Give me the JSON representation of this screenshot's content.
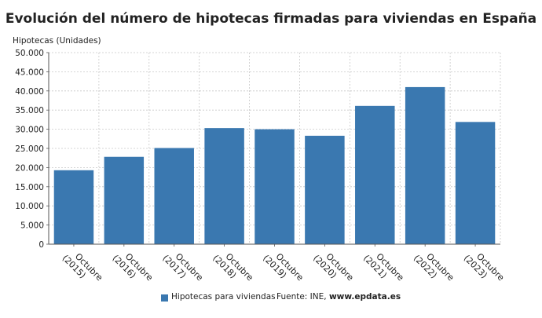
{
  "chart_data": {
    "type": "bar",
    "title": "Evolución del número de hipotecas firmadas para viviendas en España",
    "ylabel": "Hipotecas (Unidades)",
    "categories": [
      "Octubre (2015)",
      "Octubre (2016)",
      "Octubre (2017)",
      "Octubre (2018)",
      "Octubre (2019)",
      "Octubre (2020)",
      "Octubre (2021)",
      "Octubre (2022)",
      "Octubre (2023)"
    ],
    "category_lines": [
      [
        "Octubre",
        "(2015)"
      ],
      [
        "Octubre",
        "(2016)"
      ],
      [
        "Octubre",
        "(2017)"
      ],
      [
        "Octubre",
        "(2018)"
      ],
      [
        "Octubre",
        "(2019)"
      ],
      [
        "Octubre",
        "(2020)"
      ],
      [
        "Octubre",
        "(2021)"
      ],
      [
        "Octubre",
        "(2022)"
      ],
      [
        "Octubre",
        "(2023)"
      ]
    ],
    "series": [
      {
        "name": "Hipotecas para viviendas",
        "color": "#3a78b0",
        "values": [
          19300,
          22800,
          25100,
          30300,
          30000,
          28300,
          36100,
          41000,
          31900
        ]
      }
    ],
    "ylim": [
      0,
      50000
    ],
    "yticks": [
      0,
      5000,
      10000,
      15000,
      20000,
      25000,
      30000,
      35000,
      40000,
      45000,
      50000
    ],
    "ytick_labels": [
      "0",
      "5.000",
      "10.000",
      "15.000",
      "20.000",
      "25.000",
      "30.000",
      "35.000",
      "40.000",
      "45.000",
      "50.000"
    ],
    "grid": true,
    "legend_position": "bottom"
  },
  "source": {
    "prefix": "Fuente: INE, ",
    "site": "www.epdata.es"
  }
}
